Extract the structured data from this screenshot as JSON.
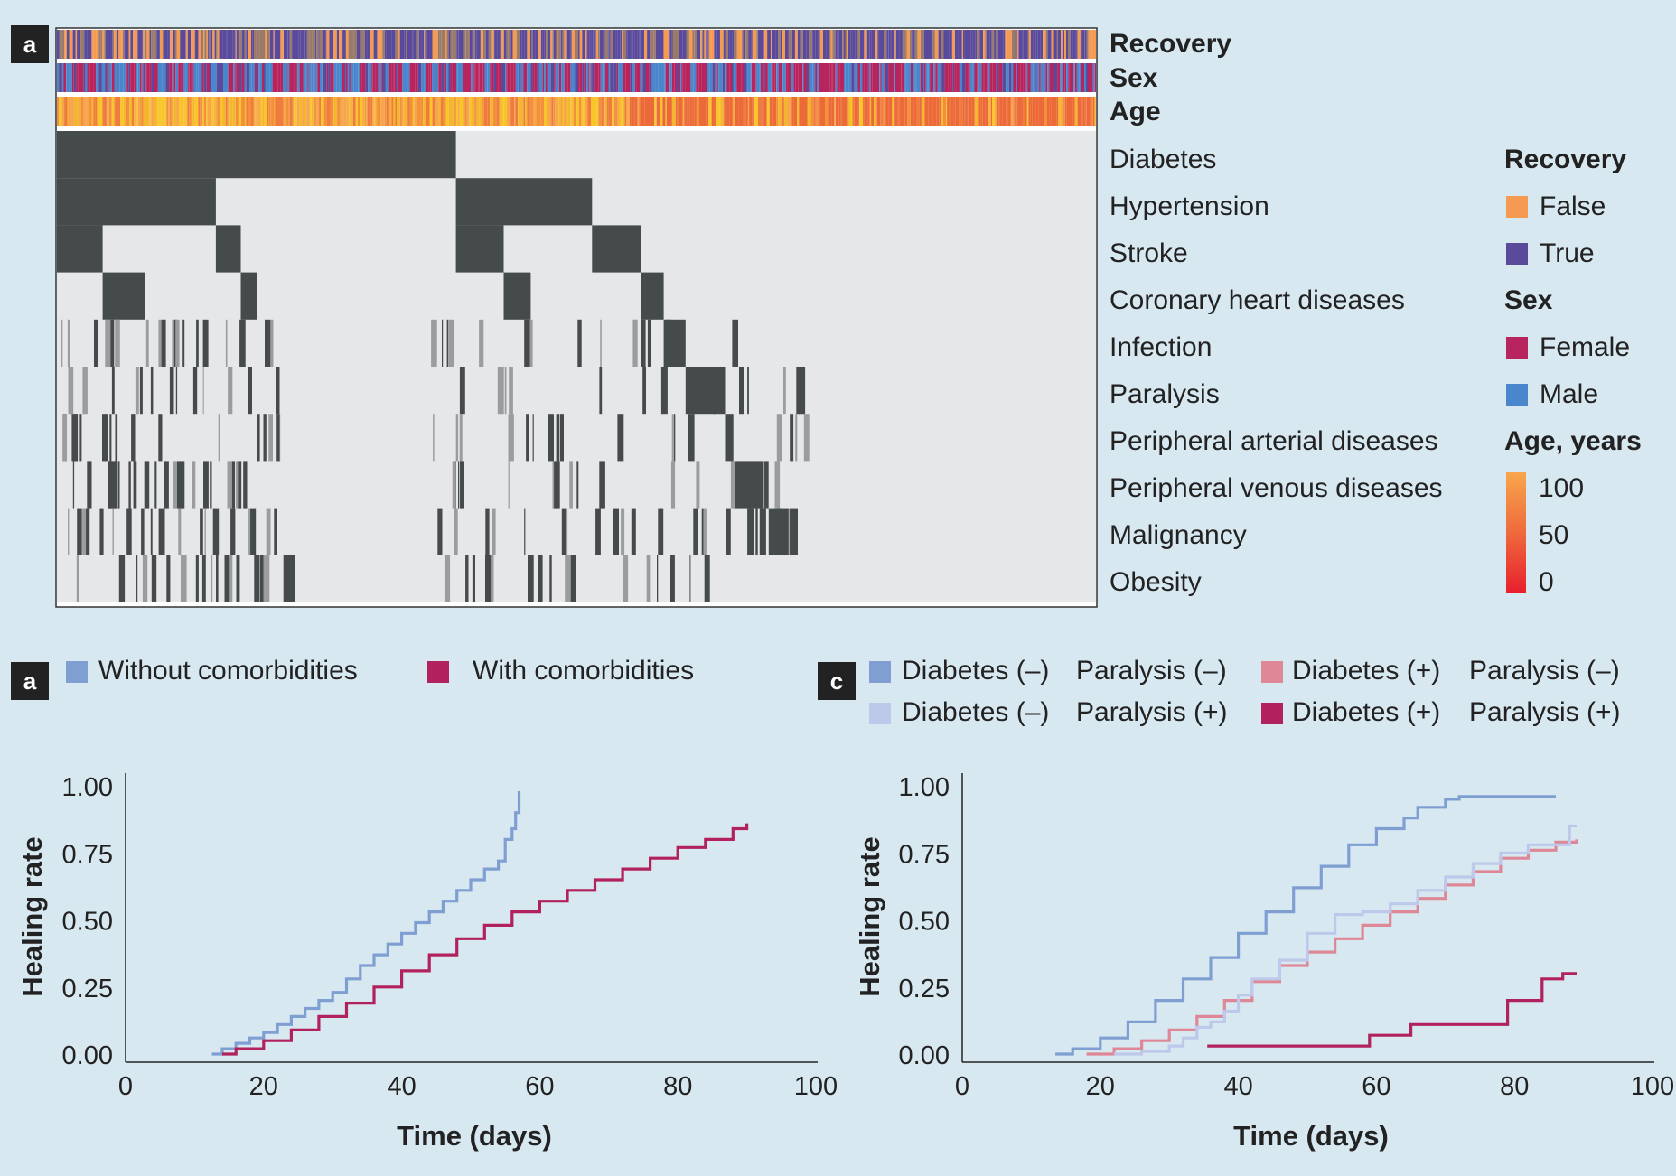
{
  "colors": {
    "background": "#d8e8f1",
    "matrix_on": "#454a4b",
    "matrix_off": "#e6e7e8",
    "recovery_false": "#f59a52",
    "recovery_true": "#5a4a9c",
    "sex_female": "#b8245e",
    "sex_male": "#4a86cc",
    "age_high": "#f7a64c",
    "age_low": "#e8202e",
    "without_comorbidities": "#7f9fd3",
    "with_comorbidities": "#b1215e",
    "dm_minus_pa_minus": "#7f9fd3",
    "dm_minus_pa_plus": "#bdc8ea",
    "dm_plus_pa_minus": "#dd8797",
    "dm_plus_pa_plus": "#b1215e"
  },
  "panel_a": {
    "badge": "a",
    "track_labels": [
      "Recovery",
      "Sex",
      "Age"
    ],
    "comorbidities": [
      "Diabetes",
      "Hypertension",
      "Stroke",
      "Coronary heart diseases",
      "Infection",
      "Paralysis",
      "Peripheral arterial diseases",
      "Peripheral venous diseases",
      "Malignancy",
      "Obesity"
    ],
    "legend": {
      "recovery_title": "Recovery",
      "recovery_items": [
        "False",
        "True"
      ],
      "sex_title": "Sex",
      "sex_items": [
        "Female",
        "Male"
      ],
      "age_title": "Age, years",
      "age_ticks": [
        "100",
        "50",
        "0"
      ]
    }
  },
  "panel_b": {
    "badge": "a",
    "legend": [
      "Without comorbidities",
      "With comorbidities"
    ]
  },
  "panel_c": {
    "badge": "c",
    "legend": [
      [
        "Diabetes (–)",
        "Paralysis (–)"
      ],
      [
        "Diabetes (+)",
        "Paralysis (–)"
      ],
      [
        "Diabetes (–)",
        "Paralysis (+)"
      ],
      [
        "Diabetes (+)",
        "Paralysis (+)"
      ]
    ]
  },
  "chart_data": [
    {
      "type": "heatmap",
      "title": "",
      "rows": [
        "Recovery",
        "Sex",
        "Age",
        "Diabetes",
        "Hypertension",
        "Stroke",
        "Coronary heart diseases",
        "Infection",
        "Paralysis",
        "Peripheral arterial diseases",
        "Peripheral venous diseases",
        "Malignancy",
        "Obesity"
      ],
      "legend": [
        "Recovery: False, True",
        "Sex: Female, Male",
        "Age, years: 0–100"
      ],
      "sorted_blocks": [
        {
          "row": "Diabetes",
          "from": 0.0,
          "to": 0.384
        },
        {
          "row": "Hypertension",
          "from": 0.0,
          "to": 0.153
        },
        {
          "row": "Hypertension",
          "from": 0.384,
          "to": 0.515
        },
        {
          "row": "Stroke",
          "from": 0.0,
          "to": 0.044
        },
        {
          "row": "Stroke",
          "from": 0.153,
          "to": 0.177
        },
        {
          "row": "Stroke",
          "from": 0.384,
          "to": 0.43
        },
        {
          "row": "Stroke",
          "from": 0.515,
          "to": 0.562
        },
        {
          "row": "Coronary heart diseases",
          "from": 0.044,
          "to": 0.085
        },
        {
          "row": "Coronary heart diseases",
          "from": 0.177,
          "to": 0.193
        },
        {
          "row": "Coronary heart diseases",
          "from": 0.43,
          "to": 0.456
        },
        {
          "row": "Coronary heart diseases",
          "from": 0.562,
          "to": 0.584
        },
        {
          "row": "Infection",
          "from": 0.584,
          "to": 0.605
        },
        {
          "row": "Paralysis",
          "from": 0.605,
          "to": 0.643
        },
        {
          "row": "Peripheral arterial diseases",
          "from": 0.643,
          "to": 0.651
        },
        {
          "row": "Peripheral venous diseases",
          "from": 0.651,
          "to": 0.685
        },
        {
          "row": "Malignancy",
          "from": 0.685,
          "to": 0.713
        },
        {
          "row": "Obesity",
          "from": 0.218,
          "to": 0.229
        }
      ]
    },
    {
      "type": "line",
      "title": "",
      "xlabel": "Time (days)",
      "ylabel": "Healing rate",
      "xlim": [
        0,
        100
      ],
      "ylim": [
        0,
        1
      ],
      "xticks": [
        "0",
        "20",
        "40",
        "60",
        "80",
        "100"
      ],
      "yticks": [
        "0.00",
        "0.25",
        "0.50",
        "0.75",
        "1.00"
      ],
      "series": [
        {
          "name": "Without comorbidities",
          "x": [
            12.5,
            14,
            16,
            18,
            20,
            22,
            24,
            26,
            28,
            30,
            32,
            34,
            36,
            38,
            40,
            42,
            44,
            46,
            48,
            50,
            52,
            54,
            55,
            56,
            56.5,
            57
          ],
          "y": [
            0.0,
            0.02,
            0.04,
            0.06,
            0.08,
            0.11,
            0.14,
            0.17,
            0.2,
            0.23,
            0.28,
            0.33,
            0.37,
            0.41,
            0.45,
            0.49,
            0.53,
            0.57,
            0.61,
            0.65,
            0.69,
            0.72,
            0.8,
            0.84,
            0.9,
            0.98
          ]
        },
        {
          "name": "With comorbidities",
          "x": [
            14,
            16,
            20,
            24,
            28,
            32,
            36,
            40,
            44,
            48,
            52,
            56,
            60,
            64,
            68,
            72,
            76,
            80,
            84,
            88,
            90
          ],
          "y": [
            0.0,
            0.02,
            0.05,
            0.09,
            0.14,
            0.19,
            0.25,
            0.31,
            0.37,
            0.43,
            0.48,
            0.53,
            0.57,
            0.61,
            0.65,
            0.69,
            0.73,
            0.77,
            0.8,
            0.84,
            0.86
          ]
        }
      ]
    },
    {
      "type": "line",
      "title": "",
      "xlabel": "Time (days)",
      "ylabel": "Healing rate",
      "xlim": [
        0,
        100
      ],
      "ylim": [
        0,
        1
      ],
      "xticks": [
        "0",
        "20",
        "40",
        "60",
        "80",
        "100"
      ],
      "yticks": [
        "0.00",
        "0.25",
        "0.50",
        "0.75",
        "1.00"
      ],
      "series": [
        {
          "name": "Diabetes (–) Paralysis (–)",
          "x": [
            13.5,
            16,
            20,
            24,
            28,
            32,
            36,
            40,
            44,
            48,
            52,
            56,
            60,
            64,
            66,
            70,
            72,
            80,
            86
          ],
          "y": [
            0.0,
            0.02,
            0.06,
            0.12,
            0.2,
            0.28,
            0.36,
            0.45,
            0.53,
            0.62,
            0.7,
            0.78,
            0.84,
            0.88,
            0.92,
            0.95,
            0.96,
            0.96,
            0.96
          ]
        },
        {
          "name": "Diabetes (+) Paralysis (–)",
          "x": [
            18,
            22,
            26,
            30,
            34,
            38,
            42,
            46,
            50,
            54,
            58,
            62,
            66,
            70,
            74,
            78,
            82,
            86,
            89
          ],
          "y": [
            0.0,
            0.02,
            0.05,
            0.09,
            0.14,
            0.2,
            0.27,
            0.33,
            0.38,
            0.43,
            0.48,
            0.53,
            0.58,
            0.63,
            0.68,
            0.73,
            0.76,
            0.79,
            0.8
          ]
        },
        {
          "name": "Diabetes (–) Paralysis (+)",
          "x": [
            22,
            26,
            30,
            32,
            34,
            36,
            38,
            40,
            42,
            46,
            50,
            54,
            58,
            62,
            66,
            70,
            74,
            78,
            82,
            86,
            88,
            89
          ],
          "y": [
            0.0,
            0.01,
            0.03,
            0.06,
            0.1,
            0.12,
            0.16,
            0.22,
            0.28,
            0.35,
            0.45,
            0.52,
            0.53,
            0.56,
            0.61,
            0.66,
            0.71,
            0.75,
            0.78,
            0.78,
            0.85,
            0.85
          ]
        },
        {
          "name": "Diabetes (+) Paralysis (+)",
          "x": [
            35.5,
            59,
            65,
            79,
            84,
            87,
            89
          ],
          "y": [
            0.03,
            0.07,
            0.11,
            0.2,
            0.28,
            0.3,
            0.3
          ]
        }
      ]
    }
  ]
}
